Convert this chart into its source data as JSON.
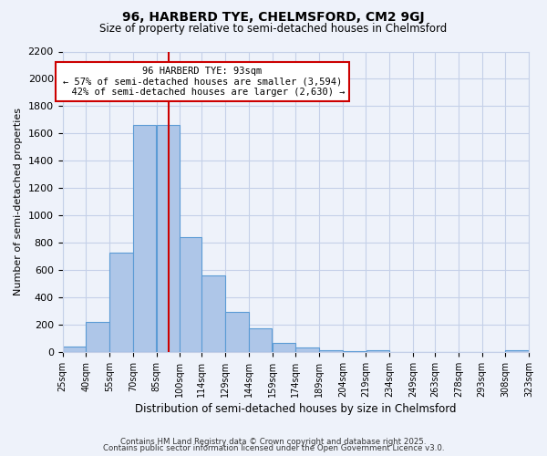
{
  "title": "96, HARBERD TYE, CHELMSFORD, CM2 9GJ",
  "subtitle": "Size of property relative to semi-detached houses in Chelmsford",
  "xlabel": "Distribution of semi-detached houses by size in Chelmsford",
  "ylabel": "Number of semi-detached properties",
  "bin_labels": [
    "25sqm",
    "40sqm",
    "55sqm",
    "70sqm",
    "85sqm",
    "100sqm",
    "114sqm",
    "129sqm",
    "144sqm",
    "159sqm",
    "174sqm",
    "189sqm",
    "204sqm",
    "219sqm",
    "234sqm",
    "249sqm",
    "263sqm",
    "278sqm",
    "293sqm",
    "308sqm",
    "323sqm"
  ],
  "bin_edges": [
    25,
    40,
    55,
    70,
    85,
    100,
    114,
    129,
    144,
    159,
    174,
    189,
    204,
    219,
    234,
    249,
    263,
    278,
    293,
    308,
    323
  ],
  "bar_values": [
    40,
    220,
    730,
    1660,
    1660,
    840,
    560,
    295,
    175,
    65,
    30,
    15,
    5,
    15,
    0,
    0,
    0,
    0,
    0,
    15
  ],
  "bar_color": "#aec6e8",
  "bar_edgecolor": "#5b9bd5",
  "property_line_x": 93,
  "pct_smaller": 57,
  "count_smaller": 3594,
  "pct_larger": 42,
  "count_larger": 2630,
  "annotation_box_color": "#ffffff",
  "annotation_box_edgecolor": "#cc0000",
  "line_color": "#cc0000",
  "ylim": [
    0,
    2200
  ],
  "yticks": [
    0,
    200,
    400,
    600,
    800,
    1000,
    1200,
    1400,
    1600,
    1800,
    2000,
    2200
  ],
  "footnote1": "Contains HM Land Registry data © Crown copyright and database right 2025.",
  "footnote2": "Contains public sector information licensed under the Open Government Licence v3.0.",
  "bg_color": "#eef2fa",
  "grid_color": "#c5d0e8"
}
